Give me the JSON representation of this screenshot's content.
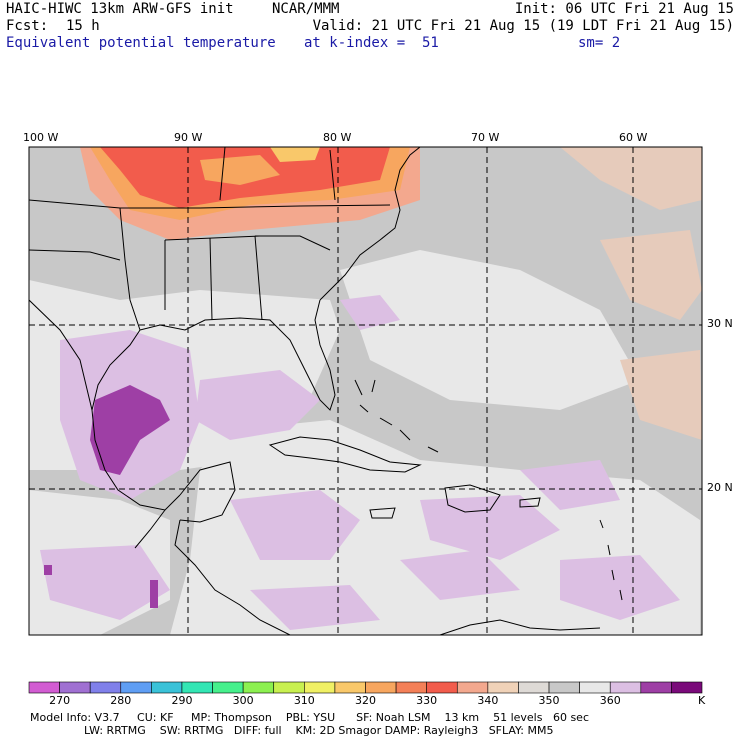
{
  "header": {
    "title_left": "HAIC-HIWC 13km ARW-GFS init",
    "org": "NCAR/MMM",
    "init": "Init: 06 UTC Fri 21 Aug 15",
    "fcst_label": "Fcst:",
    "fcst_value": "15 h",
    "valid": "Valid: 21 UTC Fri 21 Aug 15 (19 LDT Fri 21 Aug 15)",
    "field": "Equivalent potential temperature",
    "level": "at k-index =  51",
    "smooth": "sm= 2"
  },
  "map": {
    "lon_labels": [
      "100 W",
      "90 W",
      "80 W",
      "70 W",
      "60 W"
    ],
    "lat_labels": [
      "30 N",
      "20 N"
    ],
    "colors": {
      "gray": "#c8c8c8",
      "light": "#e8e8e8",
      "lavender": "#dcbfe3",
      "purple": "#9e3fa5",
      "tan": "#e6cbbb",
      "salmon": "#f3a88e",
      "orange": "#f7a65f",
      "red": "#f25c4c",
      "gold": "#f9c86a"
    }
  },
  "colorbar": {
    "colors": [
      "#d25cd2",
      "#a070d2",
      "#8080ea",
      "#5f9ef4",
      "#3ac2d8",
      "#33e6b4",
      "#46f08c",
      "#8cf050",
      "#c8f050",
      "#f0f064",
      "#f9c86a",
      "#f7a65f",
      "#f48058",
      "#f25c4c",
      "#f3a88e",
      "#f0d2b8",
      "#dedad6",
      "#c8c8c8",
      "#e8e8e8",
      "#dcbfe3",
      "#9e3fa5",
      "#7a0a7a"
    ],
    "tick_labels": [
      "270",
      "280",
      "290",
      "300",
      "310",
      "320",
      "330",
      "340",
      "350",
      "360"
    ],
    "unit": "K"
  },
  "footer": {
    "line1": "Model Info: V3.7     CU: KF     MP: Thompson    PBL: YSU      SF: Noah LSM    13 km    51 levels   60 sec",
    "line2": "LW: RRTMG    SW: RRTMG   DIFF: full    KM: 2D Smagor DAMP: Rayleigh3   SFLAY: MM5"
  }
}
